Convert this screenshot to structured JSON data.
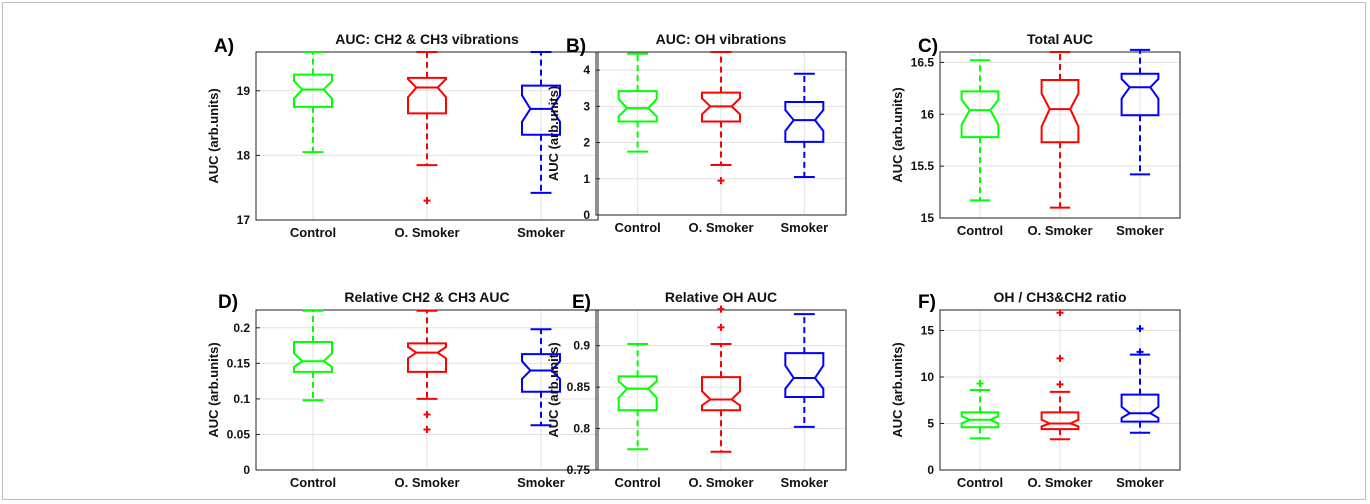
{
  "chart_data": [
    {
      "type": "boxplot",
      "panel_label": "A)",
      "title": "AUC: CH2 & CH3 vibrations",
      "ylabel": "AUC (arb.units)",
      "ylim": [
        17,
        19.6
      ],
      "yticks": [
        17,
        18,
        19
      ],
      "categories": [
        "Control",
        "O. Smoker",
        "Smoker"
      ],
      "colors": [
        "#00ff00",
        "#ff0000",
        "#0000ff"
      ],
      "boxes": [
        {
          "whisker_low": 18.05,
          "q1": 18.75,
          "median": 19.02,
          "q3": 19.25,
          "whisker_high": 19.6,
          "notch_low": 18.88,
          "notch_high": 19.15,
          "outliers": []
        },
        {
          "whisker_low": 17.85,
          "q1": 18.65,
          "median": 19.05,
          "q3": 19.2,
          "whisker_high": 19.6,
          "notch_low": 18.9,
          "notch_high": 19.18,
          "outliers": [
            17.3
          ]
        },
        {
          "whisker_low": 17.42,
          "q1": 18.32,
          "median": 18.72,
          "q3": 19.08,
          "whisker_high": 19.6,
          "notch_low": 18.52,
          "notch_high": 18.93,
          "outliers": []
        }
      ]
    },
    {
      "type": "boxplot",
      "panel_label": "B)",
      "title": "AUC: OH vibrations",
      "ylabel": "AUC (arb.units)",
      "ylim": [
        0,
        4.5
      ],
      "yticks": [
        0,
        1,
        2,
        3,
        4
      ],
      "categories": [
        "Control",
        "O. Smoker",
        "Smoker"
      ],
      "colors": [
        "#00ff00",
        "#ff0000",
        "#0000ff"
      ],
      "boxes": [
        {
          "whisker_low": 1.75,
          "q1": 2.58,
          "median": 2.95,
          "q3": 3.42,
          "whisker_high": 4.45,
          "notch_low": 2.72,
          "notch_high": 3.2,
          "outliers": []
        },
        {
          "whisker_low": 1.38,
          "q1": 2.58,
          "median": 3.0,
          "q3": 3.38,
          "whisker_high": 4.5,
          "notch_low": 2.78,
          "notch_high": 3.22,
          "outliers": [
            0.95
          ]
        },
        {
          "whisker_low": 1.05,
          "q1": 2.02,
          "median": 2.62,
          "q3": 3.12,
          "whisker_high": 3.9,
          "notch_low": 2.32,
          "notch_high": 2.9,
          "outliers": []
        }
      ]
    },
    {
      "type": "boxplot",
      "panel_label": "C)",
      "title": "Total AUC",
      "ylabel": "AUC (arb.units)",
      "ylim": [
        15,
        16.6
      ],
      "yticks": [
        15,
        15.5,
        16,
        16.5
      ],
      "categories": [
        "Control",
        "O. Smoker",
        "Smoker"
      ],
      "colors": [
        "#00ff00",
        "#ff0000",
        "#0000ff"
      ],
      "boxes": [
        {
          "whisker_low": 15.17,
          "q1": 15.78,
          "median": 16.04,
          "q3": 16.22,
          "whisker_high": 16.52,
          "notch_low": 15.9,
          "notch_high": 16.14,
          "outliers": []
        },
        {
          "whisker_low": 15.1,
          "q1": 15.73,
          "median": 16.05,
          "q3": 16.33,
          "whisker_high": 16.6,
          "notch_low": 15.88,
          "notch_high": 16.2,
          "outliers": []
        },
        {
          "whisker_low": 15.42,
          "q1": 15.99,
          "median": 16.26,
          "q3": 16.39,
          "whisker_high": 16.62,
          "notch_low": 16.15,
          "notch_high": 16.34,
          "outliers": []
        }
      ]
    },
    {
      "type": "boxplot",
      "panel_label": "D)",
      "title": "Relative CH2 & CH3 AUC",
      "ylabel": "AUC (arb.units)",
      "ylim": [
        0,
        0.225
      ],
      "yticks": [
        0,
        0.05,
        0.1,
        0.15,
        0.2
      ],
      "categories": [
        "Control",
        "O. Smoker",
        "Smoker"
      ],
      "colors": [
        "#00ff00",
        "#ff0000",
        "#0000ff"
      ],
      "boxes": [
        {
          "whisker_low": 0.098,
          "q1": 0.138,
          "median": 0.153,
          "q3": 0.18,
          "whisker_high": 0.224,
          "notch_low": 0.145,
          "notch_high": 0.164,
          "outliers": []
        },
        {
          "whisker_low": 0.1,
          "q1": 0.138,
          "median": 0.165,
          "q3": 0.178,
          "whisker_high": 0.224,
          "notch_low": 0.157,
          "notch_high": 0.173,
          "outliers": [
            0.078,
            0.057
          ]
        },
        {
          "whisker_low": 0.063,
          "q1": 0.11,
          "median": 0.14,
          "q3": 0.163,
          "whisker_high": 0.198,
          "notch_low": 0.128,
          "notch_high": 0.153,
          "outliers": []
        }
      ]
    },
    {
      "type": "boxplot",
      "panel_label": "E)",
      "title": "Relative OH AUC",
      "ylabel": "AUC (arb.units)",
      "ylim": [
        0.75,
        0.943
      ],
      "yticks": [
        0.75,
        0.8,
        0.85,
        0.9
      ],
      "categories": [
        "Control",
        "O. Smoker",
        "Smoker"
      ],
      "colors": [
        "#00ff00",
        "#ff0000",
        "#0000ff"
      ],
      "boxes": [
        {
          "whisker_low": 0.775,
          "q1": 0.822,
          "median": 0.848,
          "q3": 0.863,
          "whisker_high": 0.902,
          "notch_low": 0.837,
          "notch_high": 0.857,
          "outliers": []
        },
        {
          "whisker_low": 0.772,
          "q1": 0.822,
          "median": 0.835,
          "q3": 0.862,
          "whisker_high": 0.902,
          "notch_low": 0.828,
          "notch_high": 0.845,
          "outliers": [
            0.922,
            0.944
          ]
        },
        {
          "whisker_low": 0.802,
          "q1": 0.838,
          "median": 0.861,
          "q3": 0.891,
          "whisker_high": 0.938,
          "notch_low": 0.848,
          "notch_high": 0.876,
          "outliers": []
        }
      ]
    },
    {
      "type": "boxplot",
      "panel_label": "F)",
      "title": "OH / CH3&CH2 ratio",
      "ylabel": "AUC (arb.units)",
      "ylim": [
        0,
        17.2
      ],
      "yticks": [
        0,
        5,
        10,
        15
      ],
      "categories": [
        "Control",
        "O. Smoker",
        "Smoker"
      ],
      "colors": [
        "#00ff00",
        "#ff0000",
        "#0000ff"
      ],
      "boxes": [
        {
          "whisker_low": 3.4,
          "q1": 4.6,
          "median": 5.4,
          "q3": 6.2,
          "whisker_high": 8.6,
          "notch_low": 5.0,
          "notch_high": 5.8,
          "outliers": [
            9.3
          ]
        },
        {
          "whisker_low": 3.3,
          "q1": 4.4,
          "median": 5.0,
          "q3": 6.2,
          "whisker_high": 8.4,
          "notch_low": 4.7,
          "notch_high": 5.4,
          "outliers": [
            9.2,
            12.0,
            16.9
          ]
        },
        {
          "whisker_low": 4.0,
          "q1": 5.2,
          "median": 6.1,
          "q3": 8.1,
          "whisker_high": 12.4,
          "notch_low": 5.6,
          "notch_high": 6.8,
          "outliers": [
            12.7,
            15.2
          ]
        }
      ]
    }
  ]
}
